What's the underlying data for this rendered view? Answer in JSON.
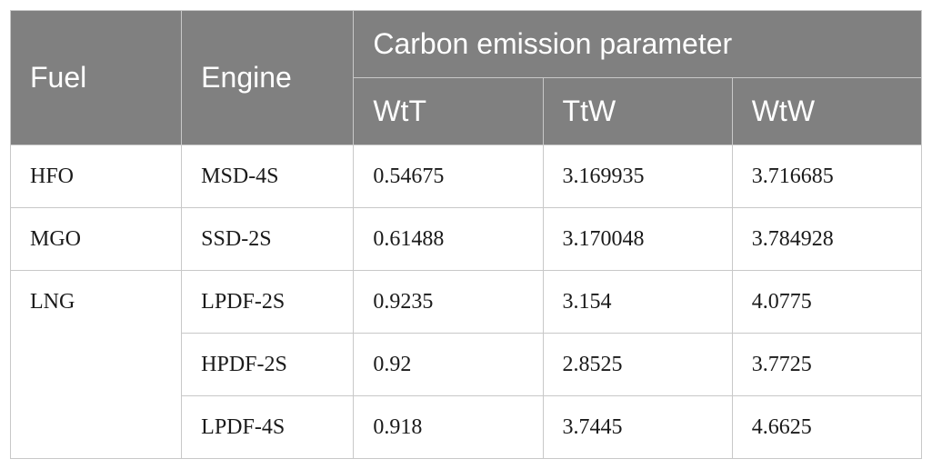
{
  "table": {
    "header": {
      "fuel": "Fuel",
      "engine": "Engine",
      "group": "Carbon emission parameter",
      "sub": [
        "WtT",
        "TtW",
        "WtW"
      ]
    },
    "rows": [
      {
        "fuel": "HFO",
        "engine": "MSD-4S",
        "wtt": "0.54675",
        "ttw": "3.169935",
        "wtw": "3.716685"
      },
      {
        "fuel": "MGO",
        "engine": "SSD-2S",
        "wtt": "0.61488",
        "ttw": "3.170048",
        "wtw": "3.784928"
      },
      {
        "fuel": "LNG",
        "engine": "LPDF-2S",
        "wtt": "0.9235",
        "ttw": "3.154",
        "wtw": "4.0775"
      },
      {
        "fuel": "",
        "engine": "HPDF-2S",
        "wtt": "0.92",
        "ttw": "2.8525",
        "wtw": "3.7725"
      },
      {
        "fuel": "",
        "engine": "LPDF-4S",
        "wtt": "0.918",
        "ttw": "3.7445",
        "wtw": "4.6625"
      }
    ]
  }
}
